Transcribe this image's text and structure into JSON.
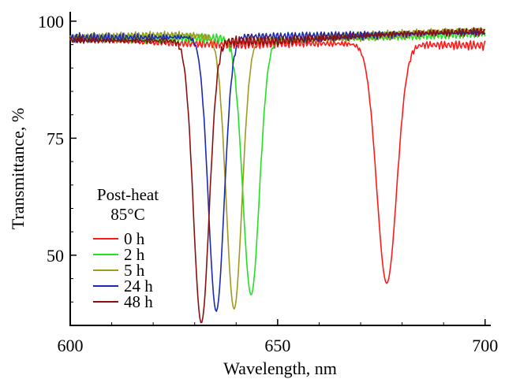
{
  "chart_data": {
    "type": "line",
    "title": "",
    "xlabel": "Wavelength, nm",
    "ylabel": "Transmittance, %",
    "xlim": [
      600,
      701
    ],
    "ylim": [
      35,
      102
    ],
    "xticks": [
      600,
      650,
      700
    ],
    "yticks": [
      50,
      75,
      100
    ],
    "grid": false,
    "legend": {
      "title_line1": "Post-heat",
      "title_line2": "85°C",
      "placement": "left-lower"
    },
    "series": [
      {
        "name": "0 h",
        "color": "#ff1a1a",
        "baseline": 95.5,
        "dip_center": 676.3,
        "dip_min": 44.0,
        "dip_sigma": 2.4,
        "points": [
          [
            600,
            96.2
          ],
          [
            620,
            95.4
          ],
          [
            640,
            95.0
          ],
          [
            655,
            95.3
          ],
          [
            665,
            94.8
          ],
          [
            670,
            92.5
          ],
          [
            672,
            85
          ],
          [
            674,
            65
          ],
          [
            676.3,
            44.0
          ],
          [
            678.5,
            63
          ],
          [
            680.5,
            85
          ],
          [
            683,
            94.2
          ],
          [
            690,
            94.6
          ],
          [
            700,
            94.8
          ]
        ]
      },
      {
        "name": "2 h",
        "color": "#22e022",
        "baseline": 96.2,
        "dip_center": 643.6,
        "dip_min": 41.5,
        "dip_sigma": 2.0,
        "points": [
          [
            600,
            96.2
          ],
          [
            630,
            96.4
          ],
          [
            638,
            96.2
          ],
          [
            641,
            85
          ],
          [
            643.6,
            41.5
          ],
          [
            646,
            70
          ],
          [
            648,
            88
          ],
          [
            650,
            94
          ],
          [
            660,
            96.2
          ],
          [
            680,
            96.8
          ],
          [
            700,
            97.4
          ]
        ]
      },
      {
        "name": "5 h",
        "color": "#a09a20",
        "baseline": 96.3,
        "dip_center": 639.5,
        "dip_min": 38.5,
        "dip_sigma": 1.9,
        "points": [
          [
            600,
            96.4
          ],
          [
            625,
            97.0
          ],
          [
            633,
            96.5
          ],
          [
            636,
            82
          ],
          [
            639.5,
            38.5
          ],
          [
            642,
            70
          ],
          [
            644,
            88
          ],
          [
            646,
            92.5
          ],
          [
            650,
            94
          ],
          [
            655,
            96
          ],
          [
            680,
            97.2
          ],
          [
            700,
            98.2
          ]
        ]
      },
      {
        "name": "24 h",
        "color": "#1a2ab0",
        "baseline": 96.4,
        "dip_center": 635.2,
        "dip_min": 38.0,
        "dip_sigma": 1.9,
        "points": [
          [
            600,
            96.4
          ],
          [
            625,
            96.8
          ],
          [
            630,
            95.5
          ],
          [
            632.5,
            80
          ],
          [
            635.2,
            38.0
          ],
          [
            637.5,
            68
          ],
          [
            639.5,
            86
          ],
          [
            642,
            93
          ],
          [
            645,
            95.5
          ],
          [
            660,
            96.8
          ],
          [
            700,
            97.6
          ]
        ]
      },
      {
        "name": "48 h",
        "color": "#8a1010",
        "baseline": 96.2,
        "dip_center": 631.6,
        "dip_min": 35.5,
        "dip_sigma": 1.9,
        "points": [
          [
            600,
            96.0
          ],
          [
            615,
            95.8
          ],
          [
            624,
            95.3
          ],
          [
            628,
            82
          ],
          [
            631.6,
            35.5
          ],
          [
            634,
            62
          ],
          [
            636,
            85
          ],
          [
            638,
            91
          ],
          [
            642,
            94
          ],
          [
            650,
            95.8
          ],
          [
            680,
            97.4
          ],
          [
            700,
            97.8
          ]
        ]
      }
    ]
  }
}
